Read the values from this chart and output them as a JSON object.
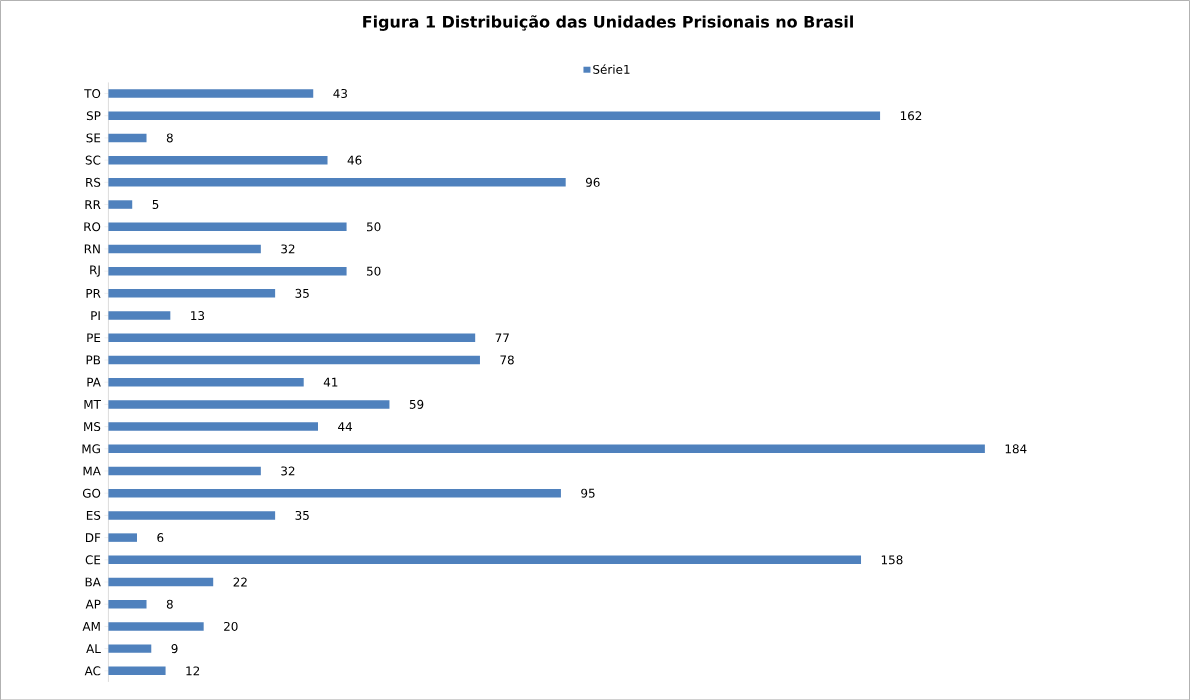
{
  "chart_data": {
    "type": "bar",
    "orientation": "horizontal",
    "title": "Figura 1 Distribuição das Unidades Prisionais no Brasil",
    "categories": [
      "TO",
      "SP",
      "SE",
      "SC",
      "RS",
      "RR",
      "RO",
      "RN",
      "RJ",
      "PR",
      "PI",
      "PE",
      "PB",
      "PA",
      "MT",
      "MS",
      "MG",
      "MA",
      "GO",
      "ES",
      "DF",
      "CE",
      "BA",
      "AP",
      "AM",
      "AL",
      "AC"
    ],
    "series": [
      {
        "name": "Série1",
        "color": "#4f81bd",
        "values": [
          43,
          162,
          8,
          46,
          96,
          5,
          50,
          32,
          50,
          35,
          13,
          77,
          78,
          41,
          59,
          44,
          184,
          32,
          95,
          35,
          6,
          158,
          22,
          8,
          20,
          9,
          12
        ]
      }
    ],
    "data_labels": true,
    "legend": "top"
  }
}
